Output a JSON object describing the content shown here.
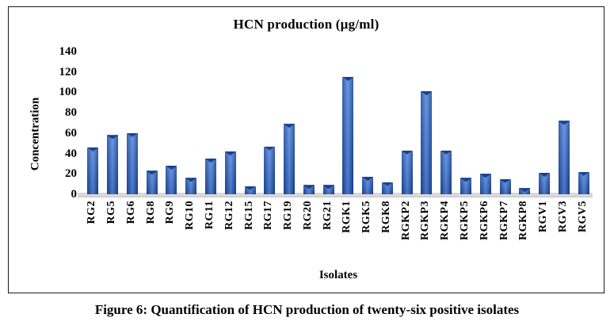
{
  "figure": {
    "caption": "Figure 6: Quantification of HCN production of twenty-six positive isolates"
  },
  "chart_data": {
    "type": "bar",
    "title": "HCN production (µg/ml)",
    "xlabel": "Isolates",
    "ylabel": "Concentration",
    "ylim": [
      0,
      140
    ],
    "yticks": [
      0,
      20,
      40,
      60,
      80,
      100,
      120,
      140
    ],
    "grid": false,
    "legend": false,
    "categories": [
      "RG2",
      "RG5",
      "RG6",
      "RG8",
      "RG9",
      "RG10",
      "RG11",
      "RG12",
      "RG15",
      "RG17",
      "RG19",
      "RG20",
      "RG21",
      "RGK1",
      "RGK5",
      "RGK8",
      "RGKP2",
      "RGKP3",
      "RGKP4",
      "RGKP5",
      "RGKP6",
      "RGKP7",
      "RGKP8",
      "RGV1",
      "RGV3",
      "RGV5"
    ],
    "values": [
      46,
      58,
      60,
      23,
      28,
      16,
      35,
      42,
      8,
      47,
      69,
      9,
      9,
      115,
      17,
      12,
      43,
      101,
      43,
      16,
      20,
      15,
      6,
      21,
      72,
      22
    ],
    "colors": {
      "bar_edge": "#1c4898",
      "bar_mid": "#2f63be",
      "bar_center": "#5586dd",
      "bar_edge_dark": "#173f89",
      "bar_notch": "#123a7e",
      "floor": "#d9d9d9",
      "box_border": "#1a1a1a",
      "text": "#000000"
    }
  }
}
